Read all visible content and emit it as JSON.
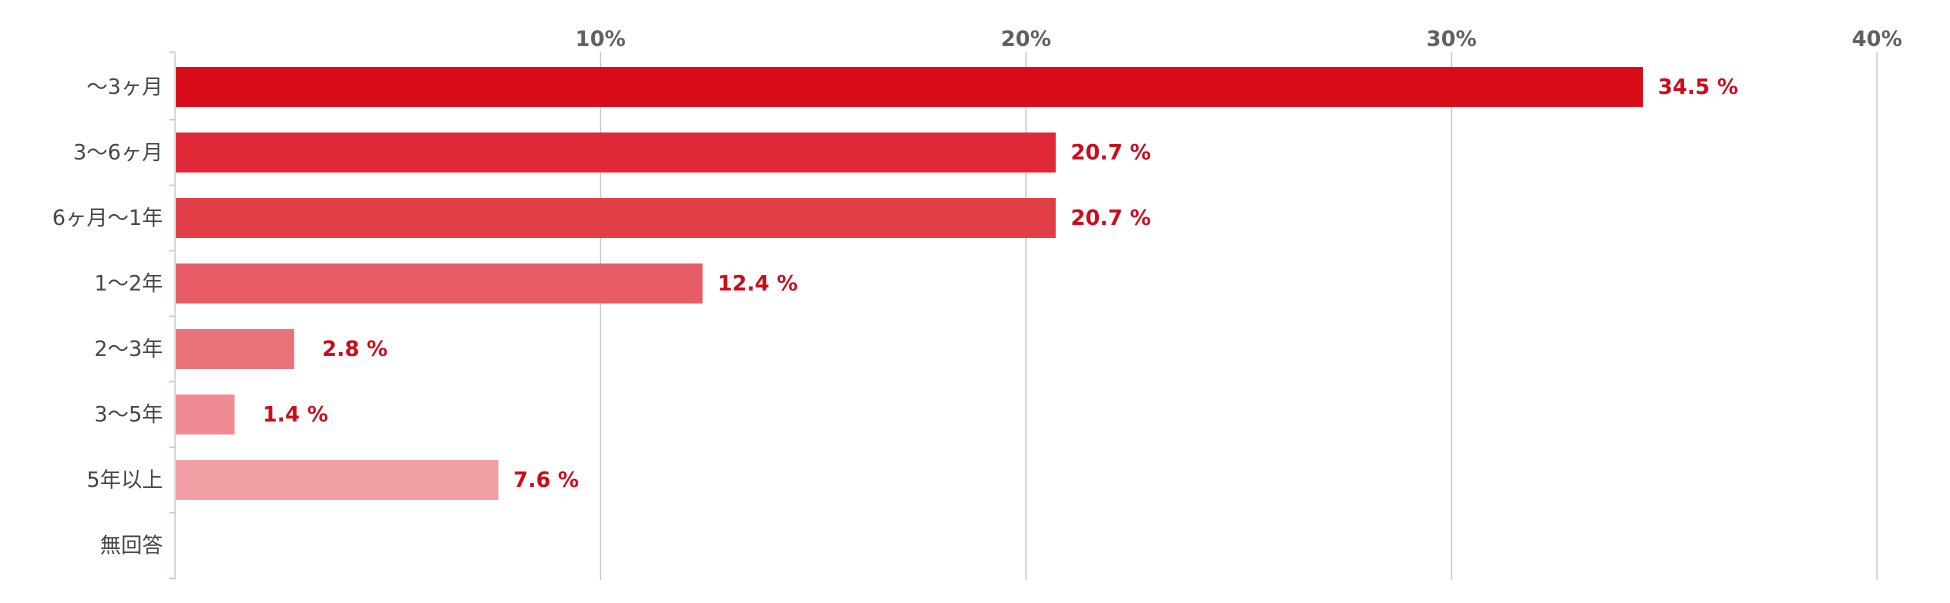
{
  "chart_data": {
    "type": "bar",
    "orientation": "horizontal",
    "categories": [
      "〜3ヶ月",
      "3〜6ヶ月",
      "6ヶ月〜1年",
      "1〜2年",
      "2〜3年",
      "3〜5年",
      "5年以上",
      "無回答"
    ],
    "values": [
      34.5,
      20.7,
      20.7,
      12.4,
      2.8,
      1.4,
      7.6,
      null
    ],
    "value_labels": [
      "34.5 %",
      "20.7 %",
      "20.7 %",
      "12.4 %",
      "2.8 %",
      "1.4 %",
      "7.6 %",
      ""
    ],
    "bar_colors": [
      "#d80c18",
      "#df2735",
      "#e13e48",
      "#e75c66",
      "#ea727a",
      "#ee8a91",
      "#f2a0a5",
      "#f2a0a5"
    ],
    "label_color": "#cc0a1a",
    "xlim": [
      0,
      40
    ],
    "xticks": [
      10,
      20,
      30,
      40
    ],
    "xtick_labels": [
      "10%",
      "20%",
      "30%",
      "40%"
    ],
    "xtick_position": "top",
    "grid": true,
    "legend": "none",
    "title": "",
    "xlabel": "",
    "ylabel": ""
  }
}
